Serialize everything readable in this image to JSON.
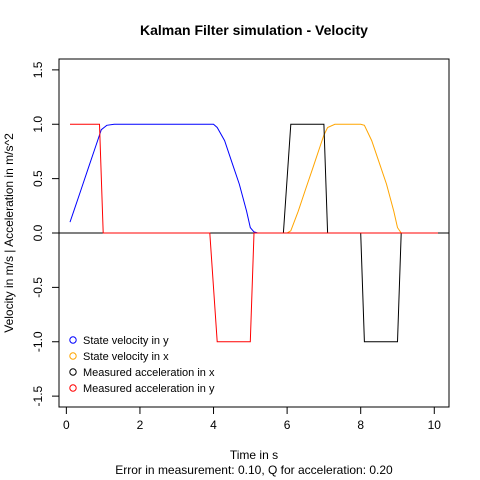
{
  "chart_data": {
    "type": "line",
    "title": "Kalman Filter simulation - Velocity",
    "xlabel": "Time in s",
    "ylabel": "Velocity in m/s | Acceleration in m/s^2",
    "subtitle": "Error in measurement: 0.10, Q for acceleration: 0.20",
    "xlim": [
      -0.2,
      10.4
    ],
    "ylim": [
      -1.6,
      1.6
    ],
    "xticks": [
      0,
      2,
      4,
      6,
      8,
      10
    ],
    "yticks": [
      -1.5,
      -1.0,
      -0.5,
      0.0,
      0.5,
      1.0,
      1.5
    ],
    "ytick_labels": [
      "-1.5",
      "-1.0",
      "-0.5",
      "0.0",
      "0.5",
      "1.0",
      "1.5"
    ],
    "hline": 0,
    "legend_position": "bottom-left",
    "series": [
      {
        "name": "State velocity in y",
        "color": "#0000ff",
        "points": [
          [
            0.1,
            0.1
          ],
          [
            0.2,
            0.2
          ],
          [
            0.4,
            0.4
          ],
          [
            0.6,
            0.6
          ],
          [
            0.8,
            0.8
          ],
          [
            0.95,
            0.95
          ],
          [
            1.1,
            0.99
          ],
          [
            1.3,
            1.0
          ],
          [
            2,
            1.0
          ],
          [
            3,
            1.0
          ],
          [
            4.0,
            1.0
          ],
          [
            4.1,
            0.97
          ],
          [
            4.3,
            0.85
          ],
          [
            4.5,
            0.65
          ],
          [
            4.7,
            0.45
          ],
          [
            4.9,
            0.2
          ],
          [
            5.0,
            0.05
          ],
          [
            5.1,
            0.01
          ],
          [
            5.2,
            0.0
          ],
          [
            6,
            0.0
          ],
          [
            7,
            0.0
          ],
          [
            8,
            0.0
          ],
          [
            9,
            0.0
          ],
          [
            10.1,
            0.0
          ]
        ]
      },
      {
        "name": "State velocity in x",
        "color": "#ffa500",
        "points": [
          [
            0.1,
            0.0
          ],
          [
            1,
            0.0
          ],
          [
            2,
            0.0
          ],
          [
            3,
            0.0
          ],
          [
            4,
            0.0
          ],
          [
            5,
            0.0
          ],
          [
            6.0,
            0.0
          ],
          [
            6.1,
            0.02
          ],
          [
            6.3,
            0.2
          ],
          [
            6.5,
            0.4
          ],
          [
            6.7,
            0.6
          ],
          [
            6.9,
            0.8
          ],
          [
            7.0,
            0.9
          ],
          [
            7.1,
            0.97
          ],
          [
            7.3,
            1.0
          ],
          [
            8,
            1.0
          ],
          [
            8.1,
            0.99
          ],
          [
            8.3,
            0.85
          ],
          [
            8.5,
            0.65
          ],
          [
            8.7,
            0.45
          ],
          [
            8.9,
            0.2
          ],
          [
            9.0,
            0.05
          ],
          [
            9.1,
            0.0
          ],
          [
            10.1,
            0.0
          ]
        ]
      },
      {
        "name": "Measured acceleration in x",
        "color": "#000000",
        "points": [
          [
            0.1,
            0.0
          ],
          [
            5.9,
            0.0
          ],
          [
            6.1,
            1.0
          ],
          [
            7.0,
            1.0
          ],
          [
            7.1,
            0.0
          ],
          [
            8.0,
            0.0
          ],
          [
            8.1,
            -1.0
          ],
          [
            9.0,
            -1.0
          ],
          [
            9.1,
            0.0
          ],
          [
            10.1,
            0.0
          ]
        ]
      },
      {
        "name": "Measured acceleration in y",
        "color": "#ff0000",
        "points": [
          [
            0.1,
            1.0
          ],
          [
            0.9,
            1.0
          ],
          [
            1.0,
            0.0
          ],
          [
            3.9,
            0.0
          ],
          [
            4.1,
            -1.0
          ],
          [
            5.0,
            -1.0
          ],
          [
            5.1,
            0.0
          ],
          [
            10.1,
            0.0
          ]
        ]
      }
    ]
  }
}
